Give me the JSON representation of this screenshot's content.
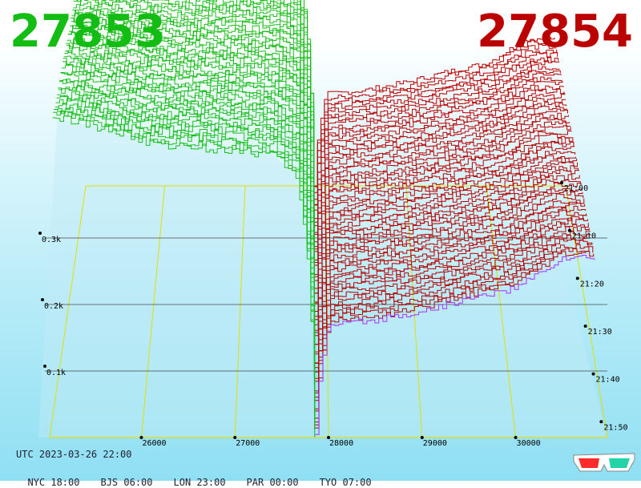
{
  "header": {
    "bid_price": "27853",
    "ask_price": "27854"
  },
  "footer": {
    "utc": "UTC 2023-03-26 22:00",
    "timezones": [
      "NYC 18:00",
      "BJS 06:00",
      "LON 23:00",
      "PAR 00:00",
      "TYO 07:00"
    ]
  },
  "colors": {
    "bids": "#13bd13",
    "asks": "#bb0000",
    "grid": "#e0e000",
    "latest_ask": "#aa33ff",
    "depth_fill": "#c4ecf6"
  },
  "icon": "3d-glasses-icon",
  "chart_data": {
    "type": "area",
    "mid_price": 27853.5,
    "price_ticks": [
      26000,
      27000,
      28000,
      29000,
      30000
    ],
    "price_tick_labels": [
      "26000",
      "27000",
      "28000",
      "29000",
      "30000"
    ],
    "volume_ticks": [
      100,
      200,
      300
    ],
    "volume_tick_labels": [
      "0.1k",
      "0.2k",
      "0.3k"
    ],
    "time_ticks": [
      "21:00",
      "21:10",
      "21:20",
      "21:30",
      "21:40",
      "21:50"
    ],
    "snapshot_count": 55,
    "bid_cumulative_depth": [
      [
        25100,
        480
      ],
      [
        25700,
        462
      ],
      [
        26000,
        447
      ],
      [
        26300,
        440
      ],
      [
        27000,
        432
      ],
      [
        27400,
        426
      ],
      [
        27650,
        395
      ],
      [
        27760,
        300
      ],
      [
        27810,
        180
      ],
      [
        27853,
        0
      ]
    ],
    "ask_cumulative_depth": [
      [
        27854,
        0
      ],
      [
        27900,
        90
      ],
      [
        28000,
        168
      ],
      [
        28500,
        176
      ],
      [
        29000,
        190
      ],
      [
        29500,
        209
      ],
      [
        30000,
        225
      ],
      [
        30500,
        270
      ]
    ]
  }
}
